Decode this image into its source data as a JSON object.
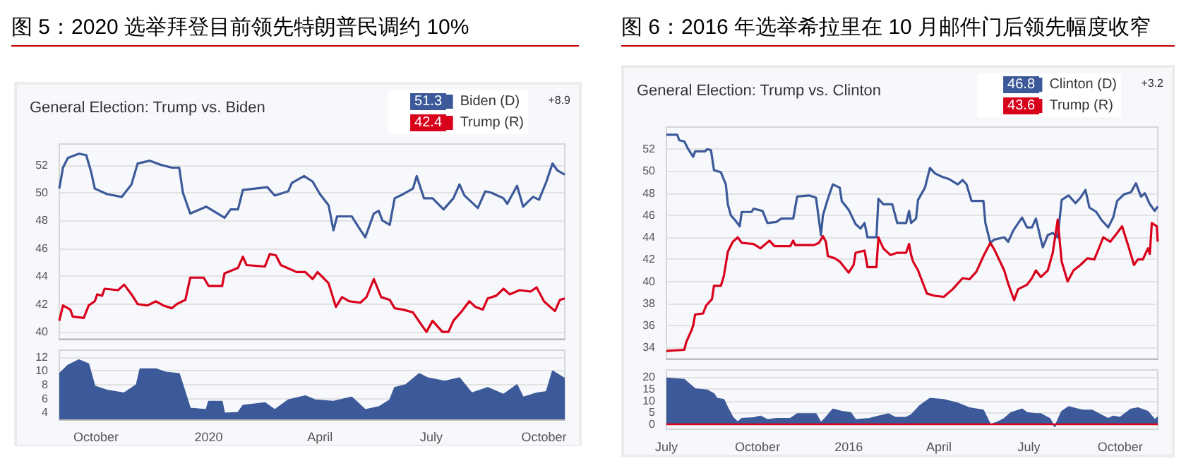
{
  "chart_data": [
    {
      "type": "line",
      "title": "图 5：2020 选举拜登目前领先特朗普民调约 10%",
      "subtitle": "General Election: Trump vs. Biden",
      "annotations": [
        "51.3",
        "42.4",
        "+8.9"
      ],
      "legend": "top right",
      "grid": "y",
      "tick_labels": "y",
      "xlim": [
        "2019-09-01",
        "2020-10-18"
      ],
      "ylim": [
        39.5,
        53.5
      ],
      "yticks": [
        40,
        42,
        44,
        46,
        48,
        50,
        52
      ],
      "series": [
        {
          "name": "Biden (D)",
          "color": "#3c5a99",
          "x": [
            "2019-09-01",
            "2019-09-04",
            "2019-09-08",
            "2019-09-17",
            "2019-09-23",
            "2019-09-27",
            "2019-09-30",
            "2019-10-10",
            "2019-10-22",
            "2019-10-30",
            "2019-11-04",
            "2019-11-14",
            "2019-11-23",
            "2019-12-02",
            "2019-12-08",
            "2019-12-11",
            "2019-12-17",
            "2019-12-30",
            "2020-01-14",
            "2020-01-19",
            "2020-01-25",
            "2020-01-29",
            "2020-02-18",
            "2020-02-24",
            "2020-03-06",
            "2020-03-09",
            "2020-03-19",
            "2020-03-26",
            "2020-04-01",
            "2020-04-08",
            "2020-04-12",
            "2020-04-15",
            "2020-04-27",
            "2020-05-02",
            "2020-05-08",
            "2020-05-15",
            "2020-05-19",
            "2020-05-22",
            "2020-05-28",
            "2020-06-01",
            "2020-06-08",
            "2020-06-16",
            "2020-06-19",
            "2020-06-25",
            "2020-07-02",
            "2020-07-11",
            "2020-07-19",
            "2020-07-24",
            "2020-07-28",
            "2020-08-08",
            "2020-08-14",
            "2020-08-19",
            "2020-08-29",
            "2020-09-01",
            "2020-09-09",
            "2020-09-14",
            "2020-09-22",
            "2020-09-27",
            "2020-10-03",
            "2020-10-08",
            "2020-10-12",
            "2020-10-18"
          ],
          "values": [
            50.3,
            51.8,
            52.5,
            52.8,
            52.7,
            51.5,
            50.3,
            49.9,
            49.7,
            50.6,
            52.1,
            52.3,
            52.0,
            51.8,
            51.8,
            50.0,
            48.5,
            49.0,
            48.2,
            48.8,
            48.8,
            50.2,
            50.4,
            49.8,
            50.1,
            50.7,
            51.2,
            50.8,
            49.9,
            49.1,
            47.3,
            48.3,
            48.3,
            47.6,
            46.8,
            48.5,
            48.7,
            48.0,
            47.7,
            49.6,
            49.9,
            50.3,
            51.2,
            49.6,
            49.6,
            48.8,
            49.6,
            50.6,
            49.8,
            48.9,
            50.1,
            50.0,
            49.6,
            49.2,
            50.5,
            49.0,
            49.7,
            49.5,
            50.8,
            52.1,
            51.6,
            51.3
          ]
        },
        {
          "name": "Trump (R)",
          "color": "#d9001b",
          "x": [
            "2019-09-01",
            "2019-09-04",
            "2019-09-10",
            "2019-09-12",
            "2019-09-21",
            "2019-09-25",
            "2019-09-30",
            "2019-10-02",
            "2019-10-06",
            "2019-10-08",
            "2019-10-19",
            "2019-10-24",
            "2019-10-30",
            "2019-11-04",
            "2019-11-12",
            "2019-11-19",
            "2019-11-25",
            "2019-12-02",
            "2019-12-06",
            "2019-12-13",
            "2019-12-17",
            "2019-12-28",
            "2020-01-01",
            "2020-01-12",
            "2020-01-14",
            "2020-01-25",
            "2020-01-29",
            "2020-02-01",
            "2020-02-16",
            "2020-02-20",
            "2020-02-25",
            "2020-02-29",
            "2020-03-13",
            "2020-03-20",
            "2020-03-26",
            "2020-03-30",
            "2020-04-08",
            "2020-04-14",
            "2020-04-19",
            "2020-04-25",
            "2020-05-04",
            "2020-05-09",
            "2020-05-15",
            "2020-05-21",
            "2020-05-28",
            "2020-06-01",
            "2020-06-08",
            "2020-06-16",
            "2020-06-23",
            "2020-06-27",
            "2020-07-02",
            "2020-07-10",
            "2020-07-15",
            "2020-07-19",
            "2020-07-26",
            "2020-08-01",
            "2020-08-06",
            "2020-08-12",
            "2020-08-16",
            "2020-08-23",
            "2020-08-29",
            "2020-09-03",
            "2020-09-11",
            "2020-09-20",
            "2020-09-25",
            "2020-10-01",
            "2020-10-06",
            "2020-10-10",
            "2020-10-14",
            "2020-10-18"
          ],
          "values": [
            40.8,
            41.9,
            41.6,
            41.1,
            41.0,
            41.9,
            42.2,
            42.7,
            42.6,
            43.1,
            43.0,
            43.4,
            42.7,
            42.0,
            41.9,
            42.2,
            41.9,
            41.7,
            42.0,
            42.3,
            43.9,
            43.9,
            43.3,
            43.3,
            44.2,
            44.6,
            45.4,
            44.8,
            44.7,
            45.6,
            45.5,
            44.8,
            44.3,
            44.3,
            43.8,
            44.3,
            43.5,
            41.8,
            42.5,
            42.2,
            42.1,
            42.5,
            43.8,
            42.5,
            42.3,
            41.7,
            41.6,
            41.4,
            40.5,
            40.0,
            40.8,
            40.0,
            40.0,
            40.8,
            41.5,
            42.2,
            41.8,
            41.6,
            42.4,
            42.6,
            43.1,
            42.7,
            43.0,
            42.9,
            43.2,
            42.2,
            41.8,
            41.5,
            42.3,
            42.4
          ]
        }
      ]
    },
    {
      "type": "area",
      "color": "#3c5a99",
      "grid": "y",
      "xlim": [
        "2019-09-01",
        "2020-10-18"
      ],
      "ylim": [
        3,
        13
      ],
      "yticks": [
        4,
        6,
        8,
        10,
        12
      ],
      "xticks": [
        {
          "value": "2019-10-01",
          "label": "October"
        },
        {
          "value": "2020-01-01",
          "label": "2020"
        },
        {
          "value": "2020-04-01",
          "label": "April"
        },
        {
          "value": "2020-07-01",
          "label": "July"
        },
        {
          "value": "2020-10-01",
          "label": "October"
        }
      ],
      "x": [
        "2019-09-01",
        "2019-09-08",
        "2019-09-17",
        "2019-09-25",
        "2019-09-30",
        "2019-10-10",
        "2019-10-24",
        "2019-11-03",
        "2019-11-06",
        "2019-11-19",
        "2019-11-27",
        "2019-12-08",
        "2019-12-17",
        "2019-12-30",
        "2020-01-01",
        "2020-01-12",
        "2020-01-14",
        "2020-01-25",
        "2020-01-29",
        "2020-02-16",
        "2020-02-24",
        "2020-03-06",
        "2020-03-20",
        "2020-03-28",
        "2020-04-12",
        "2020-04-27",
        "2020-05-08",
        "2020-05-19",
        "2020-05-28",
        "2020-06-01",
        "2020-06-10",
        "2020-06-21",
        "2020-06-28",
        "2020-07-12",
        "2020-07-24",
        "2020-08-03",
        "2020-08-16",
        "2020-08-29",
        "2020-09-09",
        "2020-09-14",
        "2020-09-25",
        "2020-10-03",
        "2020-10-08",
        "2020-10-18"
      ],
      "values": [
        9.6,
        10.8,
        11.6,
        11.0,
        7.8,
        7.2,
        6.8,
        8.0,
        10.3,
        10.3,
        9.8,
        9.6,
        4.6,
        4.4,
        5.6,
        5.6,
        3.9,
        4.0,
        5.0,
        5.4,
        4.4,
        5.8,
        6.4,
        5.8,
        5.6,
        6.2,
        4.4,
        4.8,
        5.8,
        7.6,
        8.0,
        9.6,
        9.0,
        8.5,
        9.0,
        6.8,
        7.6,
        6.6,
        8.0,
        6.2,
        6.8,
        7.0,
        10.0,
        8.9
      ]
    },
    {
      "type": "line",
      "title": "图 6：2016 年选举希拉里在 10 月邮件门后领先幅度收窄",
      "subtitle": "General Election: Trump vs. Clinton",
      "annotations": [
        "46.8",
        "43.6",
        "+3.2"
      ],
      "legend": "top right",
      "grid": "y",
      "tick_labels": "y",
      "xlim": [
        "2015-07-01",
        "2016-11-08"
      ],
      "ylim": [
        33,
        54
      ],
      "yticks": [
        34,
        36,
        38,
        40,
        42,
        44,
        46,
        48,
        50,
        52
      ],
      "series": [
        {
          "name": "Clinton (D)",
          "color": "#3c5a99",
          "x": [
            "2015-07-01",
            "2015-07-12",
            "2015-07-14",
            "2015-07-19",
            "2015-07-23",
            "2015-07-28",
            "2015-07-30",
            "2015-08-09",
            "2015-08-11",
            "2015-08-15",
            "2015-08-18",
            "2015-08-25",
            "2015-08-30",
            "2015-09-01",
            "2015-09-04",
            "2015-09-08",
            "2015-09-13",
            "2015-09-15",
            "2015-09-25",
            "2015-09-27",
            "2015-10-06",
            "2015-10-11",
            "2015-10-20",
            "2015-10-25",
            "2015-11-06",
            "2015-11-10",
            "2015-11-22",
            "2015-11-29",
            "2015-12-04",
            "2015-12-06",
            "2015-12-11",
            "2015-12-16",
            "2015-12-23",
            "2015-12-25",
            "2016-01-01",
            "2016-01-08",
            "2016-01-13",
            "2016-01-17",
            "2016-01-20",
            "2016-01-29",
            "2016-01-31",
            "2016-02-05",
            "2016-02-14",
            "2016-02-19",
            "2016-02-28",
            "2016-03-02",
            "2016-03-04",
            "2016-03-09",
            "2016-03-11",
            "2016-03-18",
            "2016-03-23",
            "2016-03-28",
            "2016-04-04",
            "2016-04-11",
            "2016-04-20",
            "2016-04-25",
            "2016-04-29",
            "2016-05-04",
            "2016-05-16",
            "2016-05-18",
            "2016-05-23",
            "2016-05-27",
            "2016-06-06",
            "2016-06-10",
            "2016-06-15",
            "2016-06-24",
            "2016-06-29",
            "2016-07-04",
            "2016-07-08",
            "2016-07-13",
            "2016-07-15",
            "2016-07-20",
            "2016-07-25",
            "2016-07-30",
            "2016-08-03",
            "2016-08-10",
            "2016-08-17",
            "2016-08-22",
            "2016-08-27",
            "2016-08-31",
            "2016-09-07",
            "2016-09-12",
            "2016-09-19",
            "2016-09-24",
            "2016-09-28",
            "2016-10-05",
            "2016-10-12",
            "2016-10-17",
            "2016-10-22",
            "2016-10-26",
            "2016-10-31",
            "2016-11-05",
            "2016-11-08"
          ],
          "values": [
            53.3,
            53.3,
            52.8,
            52.7,
            52.0,
            51.3,
            51.8,
            51.8,
            52.0,
            51.9,
            50.1,
            49.9,
            48.8,
            47.0,
            46.0,
            45.6,
            45.0,
            46.3,
            46.3,
            46.6,
            46.4,
            45.3,
            45.4,
            45.7,
            45.7,
            47.7,
            47.8,
            47.6,
            44.2,
            46.0,
            47.5,
            48.8,
            48.5,
            47.3,
            46.5,
            45.2,
            44.8,
            45.3,
            44.0,
            44.0,
            47.5,
            47.0,
            47.0,
            45.3,
            45.3,
            46.4,
            45.3,
            45.7,
            47.4,
            48.5,
            50.3,
            49.8,
            49.5,
            49.3,
            48.8,
            49.2,
            48.8,
            47.3,
            47.3,
            45.3,
            43.5,
            43.8,
            44.0,
            43.6,
            44.6,
            45.8,
            44.9,
            44.9,
            45.7,
            43.8,
            43.1,
            44.2,
            44.4,
            44.0,
            47.4,
            47.8,
            47.1,
            47.6,
            48.3,
            46.7,
            46.3,
            45.6,
            44.9,
            45.8,
            47.3,
            47.9,
            48.1,
            48.9,
            47.7,
            48.0,
            47.0,
            46.4,
            46.8
          ]
        },
        {
          "name": "Trump (R)",
          "color": "#d9001b",
          "x": [
            "2015-07-01",
            "2015-07-19",
            "2015-07-21",
            "2015-07-26",
            "2015-07-28",
            "2015-07-30",
            "2015-08-07",
            "2015-08-10",
            "2015-08-16",
            "2015-08-18",
            "2015-08-25",
            "2015-08-28",
            "2015-09-01",
            "2015-09-06",
            "2015-09-11",
            "2015-09-15",
            "2015-09-27",
            "2015-10-04",
            "2015-10-13",
            "2015-10-18",
            "2015-11-03",
            "2015-11-06",
            "2015-11-08",
            "2015-11-27",
            "2015-12-02",
            "2015-12-06",
            "2015-12-09",
            "2015-12-11",
            "2015-12-18",
            "2015-12-23",
            "2016-01-01",
            "2016-01-06",
            "2016-01-08",
            "2016-01-17",
            "2016-01-20",
            "2016-01-29",
            "2016-01-31",
            "2016-02-05",
            "2016-02-12",
            "2016-02-19",
            "2016-02-28",
            "2016-03-02",
            "2016-03-04",
            "2016-03-06",
            "2016-03-11",
            "2016-03-20",
            "2016-03-28",
            "2016-04-06",
            "2016-04-15",
            "2016-04-25",
            "2016-05-02",
            "2016-05-09",
            "2016-05-16",
            "2016-05-23",
            "2016-05-27",
            "2016-06-06",
            "2016-06-10",
            "2016-06-16",
            "2016-06-20",
            "2016-06-29",
            "2016-07-04",
            "2016-07-08",
            "2016-07-13",
            "2016-07-20",
            "2016-07-25",
            "2016-07-30",
            "2016-08-03",
            "2016-08-09",
            "2016-08-15",
            "2016-08-22",
            "2016-08-29",
            "2016-09-05",
            "2016-09-10",
            "2016-09-14",
            "2016-09-21",
            "2016-09-28",
            "2016-10-03",
            "2016-10-10",
            "2016-10-15",
            "2016-10-19",
            "2016-10-24",
            "2016-10-29",
            "2016-10-31",
            "2016-11-02",
            "2016-11-07",
            "2016-11-08"
          ],
          "values": [
            33.7,
            33.8,
            34.5,
            35.5,
            36.0,
            37.0,
            37.1,
            37.8,
            38.4,
            39.6,
            39.6,
            40.5,
            42.7,
            43.6,
            44.0,
            43.5,
            43.4,
            43.0,
            43.7,
            43.2,
            43.2,
            43.7,
            43.3,
            43.3,
            43.5,
            44.1,
            43.6,
            42.3,
            42.1,
            41.8,
            40.8,
            41.5,
            42.6,
            42.8,
            41.3,
            41.3,
            44.0,
            43.0,
            42.4,
            42.6,
            42.6,
            43.4,
            42.4,
            41.8,
            41.0,
            38.9,
            38.7,
            38.6,
            39.3,
            40.3,
            40.2,
            40.9,
            42.3,
            43.5,
            42.9,
            41.0,
            39.8,
            38.3,
            39.3,
            39.7,
            40.3,
            41.0,
            40.4,
            41.0,
            42.6,
            45.6,
            41.8,
            40.0,
            41.0,
            41.5,
            42.1,
            42.0,
            43.1,
            44.0,
            43.6,
            44.4,
            45.0,
            43.0,
            41.5,
            42.0,
            42.0,
            43.0,
            42.5,
            45.3,
            45.0,
            43.6
          ]
        }
      ]
    },
    {
      "type": "area",
      "color": "#3c5a99",
      "grid": "y",
      "xlim": [
        "2015-07-01",
        "2016-11-08"
      ],
      "ylim": [
        -2,
        23
      ],
      "yticks": [
        0,
        5,
        10,
        15,
        20
      ],
      "ref_lines": [
        {
          "axis": "y",
          "value": 0,
          "color": "#d9001b"
        }
      ],
      "xticks": [
        {
          "value": "2015-07-01",
          "label": "July"
        },
        {
          "value": "2015-10-01",
          "label": "October"
        },
        {
          "value": "2016-01-01",
          "label": "2016"
        },
        {
          "value": "2016-04-01",
          "label": "April"
        },
        {
          "value": "2016-07-01",
          "label": "July"
        },
        {
          "value": "2016-10-01",
          "label": "October"
        }
      ],
      "x": [
        "2015-07-01",
        "2015-07-19",
        "2015-07-23",
        "2015-07-30",
        "2015-08-11",
        "2015-08-18",
        "2015-08-21",
        "2015-08-28",
        "2015-09-01",
        "2015-09-06",
        "2015-09-11",
        "2015-09-15",
        "2015-09-27",
        "2015-10-04",
        "2015-10-11",
        "2015-10-20",
        "2015-11-03",
        "2015-11-10",
        "2015-11-29",
        "2015-12-04",
        "2015-12-09",
        "2015-12-16",
        "2015-12-25",
        "2016-01-03",
        "2016-01-08",
        "2016-01-22",
        "2016-01-31",
        "2016-02-10",
        "2016-02-17",
        "2016-02-28",
        "2016-03-04",
        "2016-03-13",
        "2016-03-23",
        "2016-04-06",
        "2016-04-20",
        "2016-05-02",
        "2016-05-16",
        "2016-05-23",
        "2016-05-30",
        "2016-06-06",
        "2016-06-13",
        "2016-06-24",
        "2016-06-29",
        "2016-07-08",
        "2016-07-13",
        "2016-07-22",
        "2016-07-27",
        "2016-08-03",
        "2016-08-10",
        "2016-08-24",
        "2016-09-03",
        "2016-09-12",
        "2016-09-19",
        "2016-09-24",
        "2016-10-01",
        "2016-10-12",
        "2016-10-19",
        "2016-10-29",
        "2016-11-05",
        "2016-11-08"
      ],
      "values": [
        19.6,
        19.0,
        17.5,
        15.0,
        14.5,
        13.0,
        11.0,
        10.5,
        7.0,
        3.0,
        1.0,
        2.5,
        2.8,
        3.5,
        2.0,
        2.5,
        2.5,
        4.5,
        4.5,
        0.8,
        3.0,
        6.5,
        5.5,
        5.0,
        2.0,
        2.5,
        3.5,
        4.5,
        3.0,
        3.0,
        4.0,
        8.0,
        11.0,
        10.5,
        9.0,
        7.0,
        6.0,
        0.0,
        1.0,
        2.5,
        5.0,
        6.5,
        5.0,
        4.5,
        4.5,
        2.5,
        -1.0,
        5.5,
        7.5,
        6.0,
        6.0,
        4.0,
        2.5,
        3.5,
        3.0,
        6.5,
        7.0,
        5.5,
        2.0,
        3.2
      ]
    }
  ]
}
